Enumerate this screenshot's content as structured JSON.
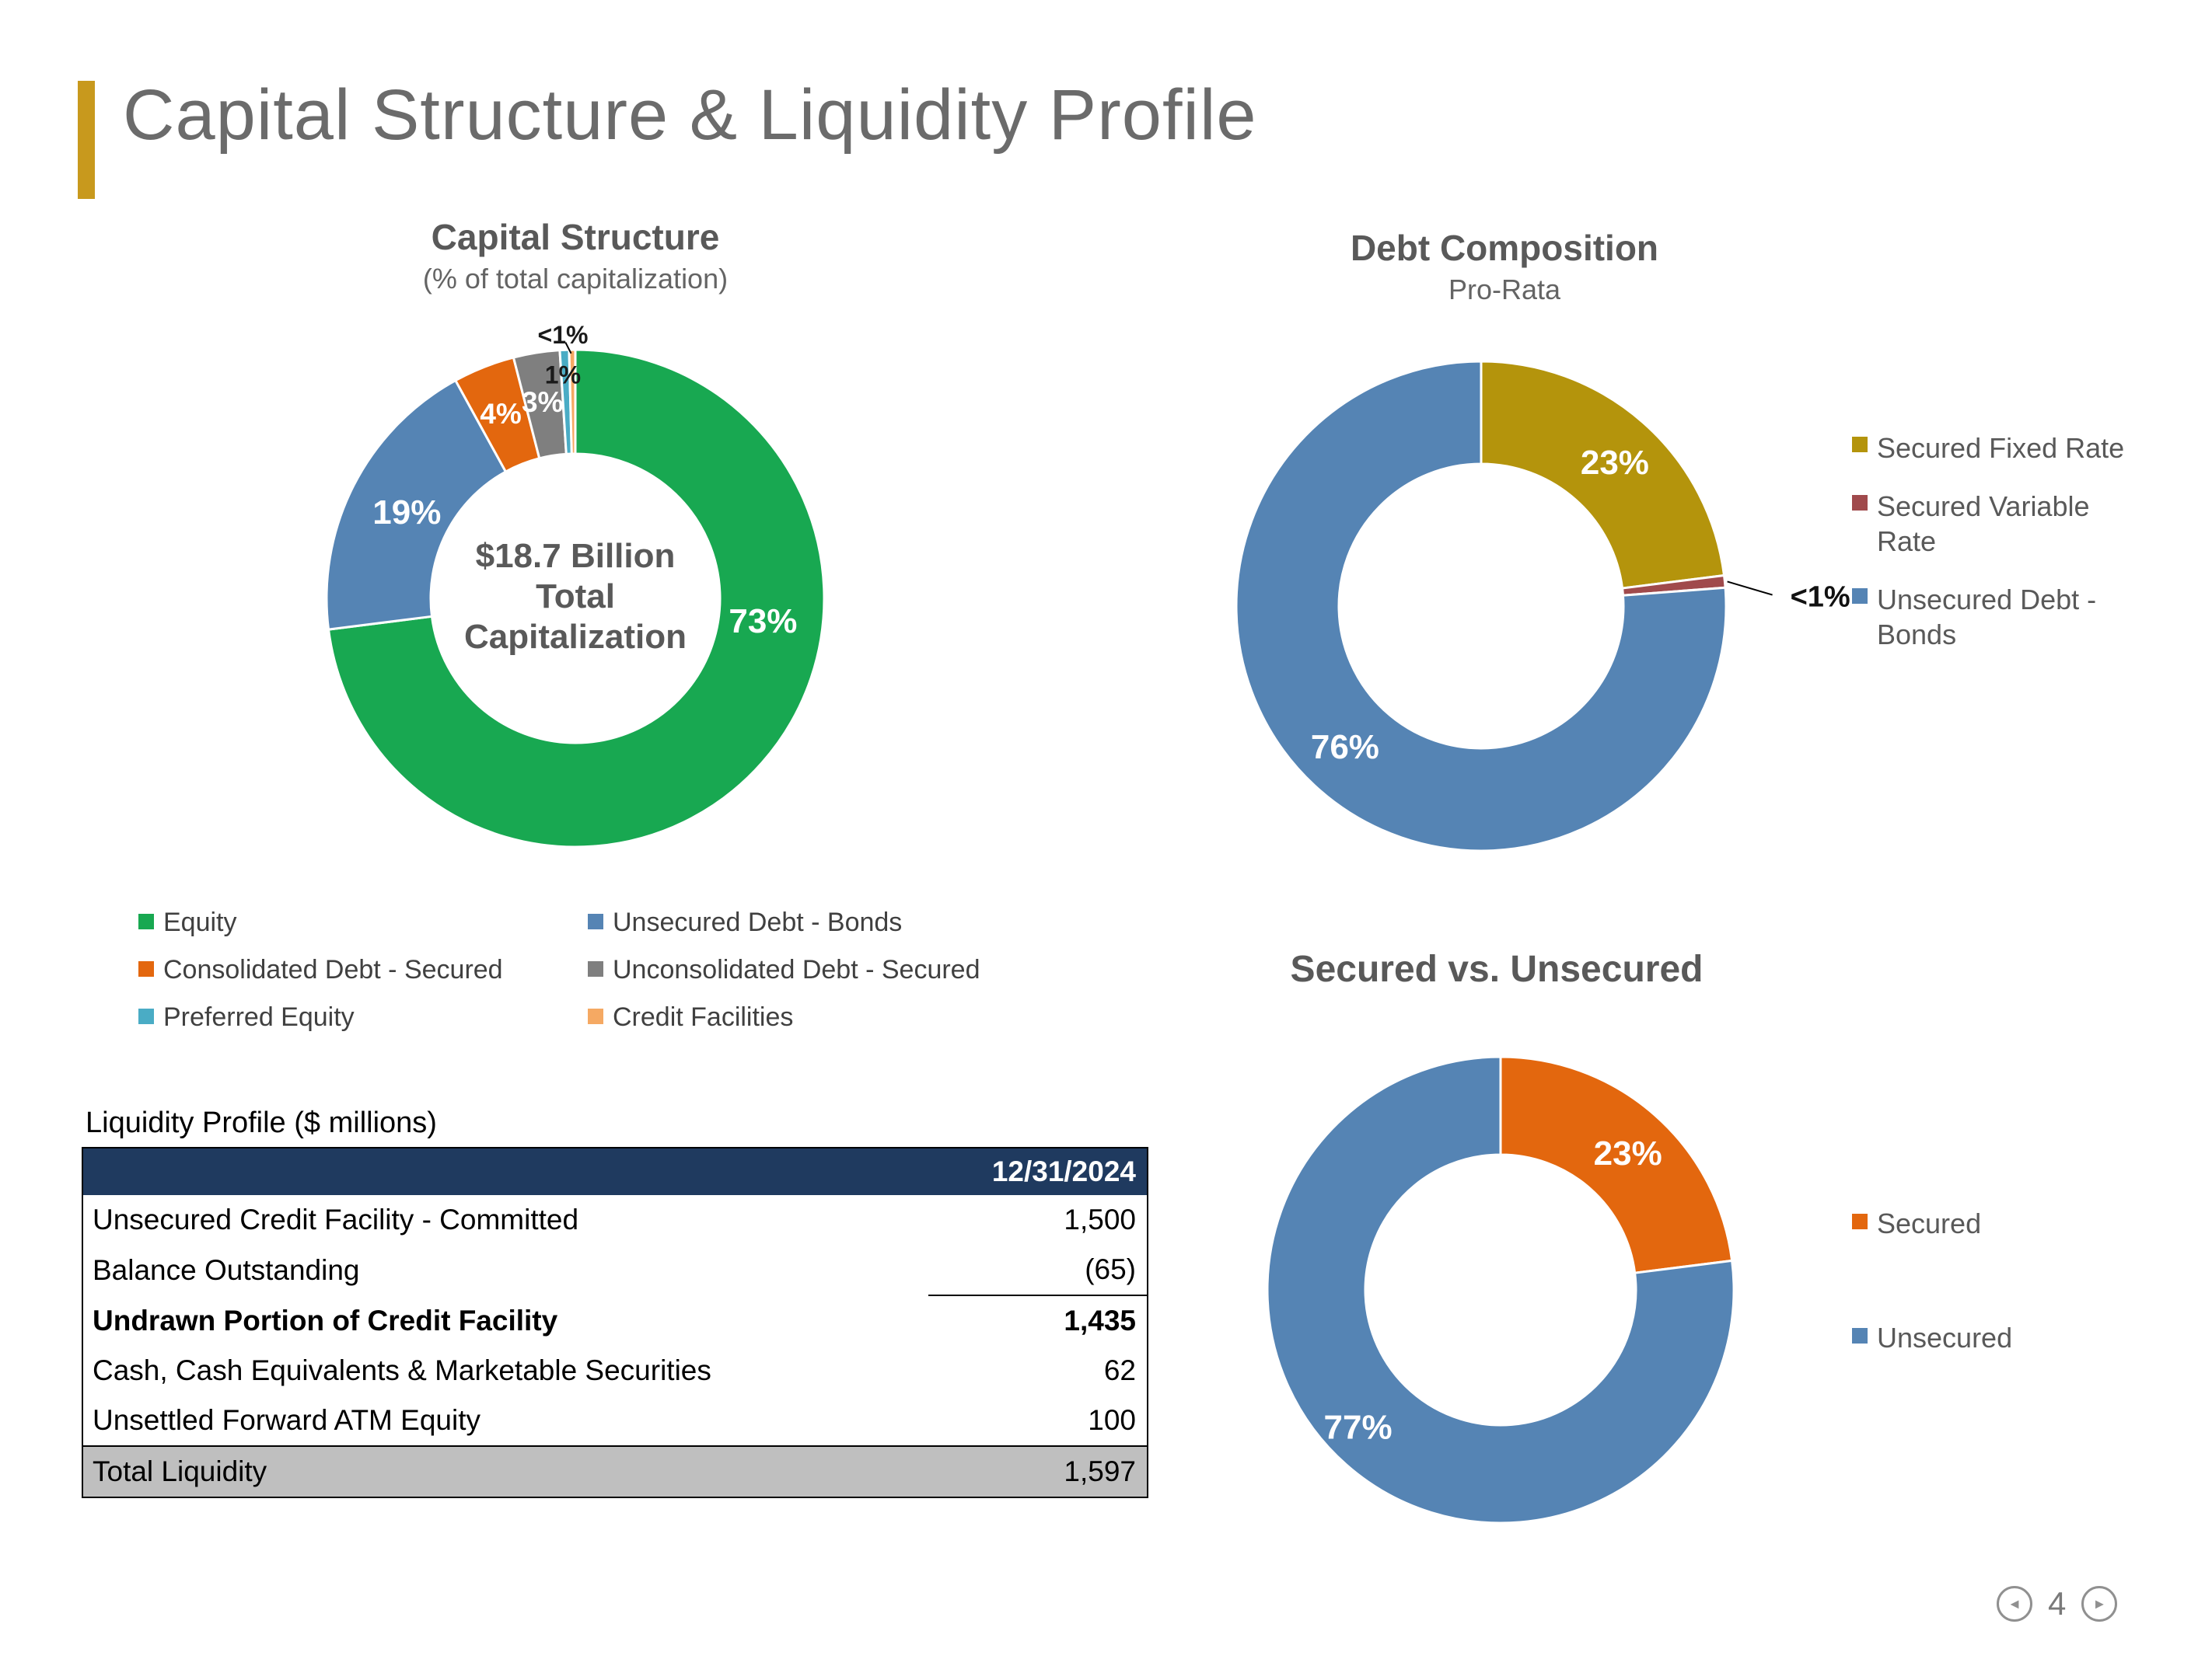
{
  "page_title": "Capital Structure & Liquidity Profile",
  "colors": {
    "accent_bar": "#C8991D",
    "header_navy": "#1F3A5F",
    "total_row_gray": "#BFBFBF",
    "equity_green": "#18A851",
    "bonds_blue": "#5584B4",
    "secured_orange": "#E3670E",
    "unconsolidated_gray": "#7F7F7F",
    "preferred_teal": "#4AACC5",
    "credit_facilities_peach": "#F5A963",
    "secured_fixed_gold": "#B4940C",
    "secured_variable_red": "#A04A4C"
  },
  "chart_data": [
    {
      "type": "donut",
      "title": "Capital Structure",
      "subtitle": "(% of total capitalization)",
      "center_label": "$18.7 Billion\nTotal\nCapitalization",
      "legend_position": "bottom-two-columns",
      "slices": [
        {
          "name": "Equity",
          "value": 73,
          "label": "73%",
          "color": "#18A851"
        },
        {
          "name": "Unsecured Debt - Bonds",
          "value": 19,
          "label": "19%",
          "color": "#5584B4"
        },
        {
          "name": "Consolidated Debt - Secured",
          "value": 4,
          "label": "4%",
          "color": "#E3670E"
        },
        {
          "name": "Unconsolidated Debt - Secured",
          "value": 3,
          "label": "3%",
          "color": "#7F7F7F"
        },
        {
          "name": "Preferred Equity",
          "value": 0.6,
          "label": "1%",
          "color": "#4AACC5"
        },
        {
          "name": "Credit Facilities",
          "value": 0.4,
          "label": "<1%",
          "color": "#F5A963"
        }
      ]
    },
    {
      "type": "donut",
      "title": "Debt Composition",
      "subtitle": "Pro-Rata",
      "center_label": "",
      "legend_position": "right",
      "slices": [
        {
          "name": "Secured Fixed Rate",
          "value": 23,
          "label": "23%",
          "color": "#B4940C"
        },
        {
          "name": "Secured Variable Rate",
          "value": 0.8,
          "label": "<1%",
          "color": "#A04A4C"
        },
        {
          "name": "Unsecured Debt - Bonds",
          "value": 76.2,
          "label": "76%",
          "color": "#5584B4"
        }
      ]
    },
    {
      "type": "donut",
      "title": "Secured vs. Unsecured",
      "subtitle": "",
      "center_label": "",
      "legend_position": "right",
      "slices": [
        {
          "name": "Secured",
          "value": 23,
          "label": "23%",
          "color": "#E3670E"
        },
        {
          "name": "Unsecured",
          "value": 77,
          "label": "77%",
          "color": "#5584B4"
        }
      ]
    }
  ],
  "table": {
    "caption": "Liquidity Profile ($ millions)",
    "date_header": "12/31/2024",
    "rows": [
      {
        "label": "Unsecured Credit Facility - Committed",
        "value": "1,500"
      },
      {
        "label": "Balance Outstanding",
        "value": "(65)",
        "value_underline": true
      },
      {
        "label": "Undrawn Portion of Credit Facility",
        "value": "1,435",
        "bold": true
      },
      {
        "label": "Cash, Cash Equivalents & Marketable Securities",
        "value": "62"
      },
      {
        "label": "Unsettled Forward ATM Equity",
        "value": "100"
      },
      {
        "label": "Total Liquidity",
        "value": "1,597",
        "total": true
      }
    ]
  },
  "footer": {
    "page_number": "4",
    "prev_icon": "◄",
    "next_icon": "►"
  }
}
